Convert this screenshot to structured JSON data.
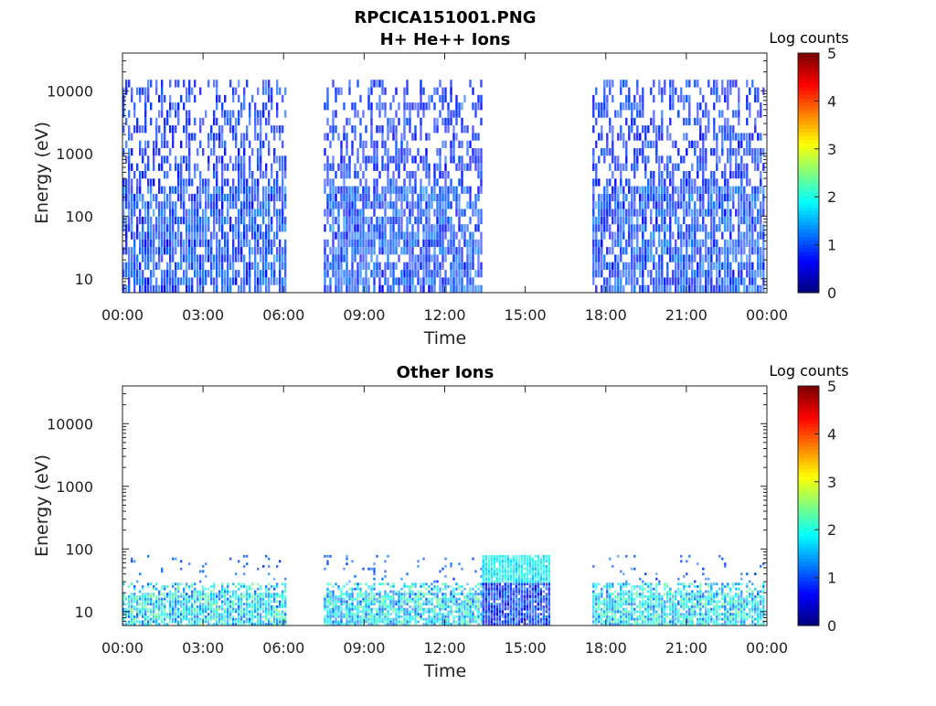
{
  "chart_data": [
    {
      "type": "heatmap",
      "title": "RPCICA151001.PNG",
      "subtitle": "H+ He++ Ions",
      "xlabel": "Time",
      "ylabel": "Energy (eV)",
      "x_range": [
        "00:00",
        "24:00"
      ],
      "x_tick_labels": [
        "00:00",
        "03:00",
        "06:00",
        "09:00",
        "12:00",
        "15:00",
        "18:00",
        "21:00",
        "00:00"
      ],
      "y_scale": "log",
      "ylim": [
        6,
        40000
      ],
      "y_tick_labels": [
        "10",
        "100",
        "1000",
        "10000"
      ],
      "colorbar": {
        "title": "Log counts",
        "min": 0,
        "max": 5,
        "tick_labels": [
          "0",
          "1",
          "2",
          "3",
          "4",
          "5"
        ],
        "colormap": "jet"
      },
      "data_intervals_hours": [
        [
          0.0,
          6.1
        ],
        [
          7.5,
          13.4
        ],
        [
          17.5,
          23.9
        ]
      ],
      "typical_level_log_counts": [
        0.6,
        1.3
      ],
      "max_energy_eV": 15000
    },
    {
      "type": "heatmap",
      "title": "Other Ions",
      "xlabel": "Time",
      "ylabel": "Energy (eV)",
      "x_range": [
        "00:00",
        "24:00"
      ],
      "x_tick_labels": [
        "00:00",
        "03:00",
        "06:00",
        "09:00",
        "12:00",
        "15:00",
        "18:00",
        "21:00",
        "00:00"
      ],
      "y_scale": "log",
      "ylim": [
        6,
        40000
      ],
      "y_tick_labels": [
        "10",
        "100",
        "1000",
        "10000"
      ],
      "colorbar": {
        "title": "Log counts",
        "min": 0,
        "max": 5,
        "tick_labels": [
          "0",
          "1",
          "2",
          "3",
          "4",
          "5"
        ],
        "colormap": "jet"
      },
      "data_intervals_hours": [
        [
          0.0,
          6.1
        ],
        [
          7.5,
          13.4
        ],
        [
          13.4,
          15.9
        ],
        [
          17.5,
          23.9
        ]
      ],
      "typical_level_log_counts": [
        1.0,
        2.5
      ],
      "max_energy_eV": 80
    }
  ]
}
